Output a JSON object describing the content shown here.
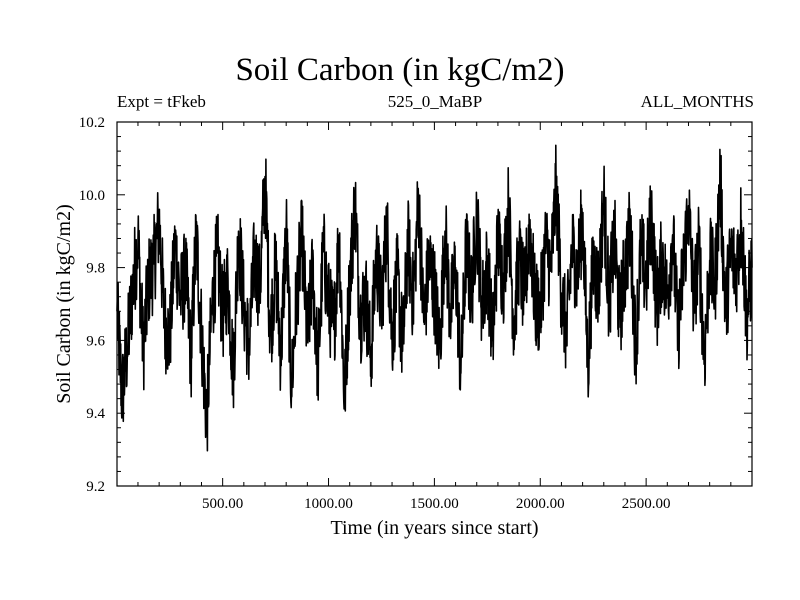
{
  "chart_data": {
    "type": "line",
    "title": "Soil Carbon (in kgC/m2)",
    "subtitles": {
      "left": "Expt = tFkeb",
      "center": "525_0_MaBP",
      "right": "ALL_MONTHS"
    },
    "xlabel": "Time (in years since start)",
    "ylabel": "Soil Carbon (in kgC/m2)",
    "xlim": [
      1,
      3000
    ],
    "ylim": [
      9.2,
      10.2
    ],
    "x_ticks": [
      500,
      1000,
      1500,
      2000,
      2500
    ],
    "x_tick_labels": [
      "500.00",
      "1000.00",
      "1500.00",
      "2000.00",
      "2500.00"
    ],
    "y_ticks": [
      9.2,
      9.4,
      9.6,
      9.8,
      10.0,
      10.2
    ],
    "y_tick_labels": [
      "9.2",
      "9.4",
      "9.6",
      "9.8",
      "10.0",
      "10.2"
    ],
    "grid": false,
    "series": [
      {
        "color": "#000000",
        "x": [
          1,
          25,
          50,
          75,
          100,
          125,
          150,
          175,
          200,
          225,
          250,
          275,
          300,
          325,
          350,
          375,
          400,
          425,
          450,
          475,
          500,
          525,
          550,
          575,
          600,
          625,
          650,
          675,
          700,
          725,
          750,
          775,
          800,
          825,
          850,
          875,
          900,
          925,
          950,
          975,
          1000,
          1025,
          1050,
          1075,
          1100,
          1125,
          1150,
          1175,
          1200,
          1225,
          1250,
          1275,
          1300,
          1325,
          1350,
          1375,
          1400,
          1425,
          1450,
          1475,
          1500,
          1525,
          1550,
          1575,
          1600,
          1625,
          1650,
          1675,
          1700,
          1725,
          1750,
          1775,
          1800,
          1825,
          1850,
          1875,
          1900,
          1925,
          1950,
          1975,
          2000,
          2025,
          2050,
          2075,
          2100,
          2125,
          2150,
          2175,
          2200,
          2225,
          2250,
          2275,
          2300,
          2325,
          2350,
          2375,
          2400,
          2425,
          2450,
          2475,
          2500,
          2525,
          2550,
          2575,
          2600,
          2625,
          2650,
          2675,
          2700,
          2725,
          2750,
          2775,
          2800,
          2825,
          2850,
          2875,
          2900,
          2925,
          2950,
          2975,
          3000
        ],
        "values": [
          9.68,
          9.45,
          9.58,
          9.74,
          9.88,
          9.57,
          9.76,
          9.81,
          9.93,
          9.65,
          9.6,
          9.87,
          9.71,
          9.79,
          9.55,
          9.89,
          9.62,
          9.38,
          9.7,
          9.84,
          9.66,
          9.77,
          9.51,
          9.9,
          9.69,
          9.58,
          9.83,
          9.74,
          10.05,
          9.62,
          9.8,
          9.56,
          9.91,
          9.47,
          9.73,
          9.88,
          9.6,
          9.79,
          9.52,
          9.85,
          9.7,
          9.63,
          9.89,
          9.44,
          9.76,
          9.98,
          9.66,
          9.73,
          9.55,
          9.84,
          9.69,
          9.92,
          9.61,
          9.78,
          9.57,
          9.87,
          9.71,
          9.99,
          9.65,
          9.82,
          9.74,
          9.58,
          9.9,
          9.67,
          9.8,
          9.51,
          9.86,
          9.72,
          9.95,
          9.69,
          9.81,
          9.6,
          9.88,
          9.76,
          9.97,
          9.64,
          9.83,
          9.71,
          9.92,
          9.7,
          9.68,
          9.87,
          9.79,
          10.02,
          9.73,
          9.61,
          9.86,
          9.78,
          9.94,
          9.53,
          9.82,
          9.74,
          9.99,
          9.7,
          9.88,
          9.66,
          9.8,
          9.91,
          9.58,
          9.85,
          9.76,
          9.95,
          9.69,
          9.83,
          9.72,
          9.89,
          9.62,
          9.79,
          9.97,
          9.7,
          9.86,
          9.55,
          9.82,
          9.75,
          10.04,
          9.68,
          9.84,
          9.79,
          9.93,
          9.66,
          9.8
        ]
      }
    ]
  }
}
